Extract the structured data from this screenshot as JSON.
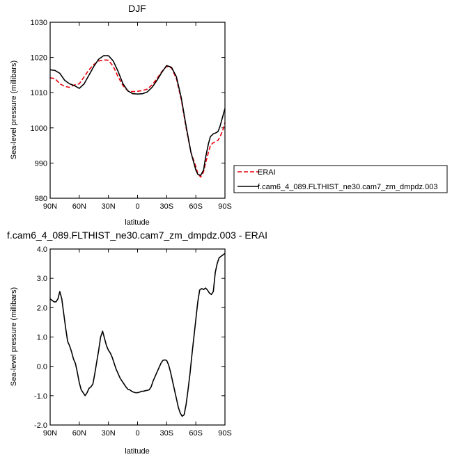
{
  "chart_data": [
    {
      "type": "line",
      "title": "DJF",
      "xlabel": "latitude",
      "ylabel": "Sea-level pressure (millibars)",
      "xlim": [
        90,
        -90
      ],
      "ylim": [
        980,
        1030
      ],
      "xticks": [
        90,
        60,
        30,
        0,
        -30,
        -60,
        -90
      ],
      "xtick_labels": [
        "90N",
        "60N",
        "30N",
        "0",
        "30S",
        "60S",
        "90S"
      ],
      "yticks": [
        980,
        990,
        1000,
        1010,
        1020,
        1030
      ],
      "ytick_labels": [
        "980",
        "990",
        "1000",
        "1010",
        "1020",
        "1030"
      ],
      "legend_position": "right",
      "grid": false,
      "series": [
        {
          "name": "ERAI",
          "color": "#e8000b",
          "style": "dashed",
          "x": [
            90,
            85,
            80,
            75,
            70,
            65,
            60,
            55,
            50,
            45,
            40,
            35,
            30,
            25,
            20,
            15,
            10,
            5,
            0,
            -5,
            -10,
            -15,
            -20,
            -25,
            -30,
            -35,
            -40,
            -45,
            -50,
            -55,
            -60,
            -62,
            -65,
            -68,
            -70,
            -73,
            -75,
            -78,
            -80,
            -83,
            -85,
            -88,
            -90
          ],
          "y": [
            1014.2,
            1014.0,
            1012.5,
            1011.8,
            1011.5,
            1012.2,
            1012.5,
            1014.5,
            1016.5,
            1018.0,
            1019.0,
            1019.3,
            1019.2,
            1017.5,
            1014.5,
            1012.0,
            1010.5,
            1010.3,
            1010.4,
            1010.6,
            1011.0,
            1012.2,
            1014.0,
            1016.0,
            1017.5,
            1017.0,
            1014.0,
            1008.0,
            1000.0,
            993.0,
            989.0,
            987.0,
            986.0,
            987.5,
            990.0,
            993.0,
            995.0,
            995.8,
            996.0,
            996.5,
            997.5,
            999.5,
            1001.5
          ]
        },
        {
          "name": "f.cam6_4_089.FLTHIST_ne30.cam7_zm_dmpdz.003",
          "color": "#000000",
          "style": "solid",
          "x": [
            90,
            85,
            80,
            75,
            70,
            65,
            60,
            55,
            50,
            45,
            40,
            35,
            30,
            25,
            20,
            15,
            10,
            5,
            0,
            -5,
            -10,
            -15,
            -20,
            -25,
            -30,
            -35,
            -40,
            -45,
            -50,
            -55,
            -60,
            -62,
            -65,
            -68,
            -70,
            -73,
            -75,
            -78,
            -80,
            -83,
            -85,
            -88,
            -90
          ],
          "y": [
            1016.5,
            1016.3,
            1015.5,
            1013.5,
            1012.5,
            1012.0,
            1011.2,
            1012.5,
            1015.0,
            1017.5,
            1019.5,
            1020.5,
            1020.5,
            1019.0,
            1016.0,
            1012.5,
            1010.5,
            1009.7,
            1009.6,
            1009.7,
            1010.2,
            1011.5,
            1013.5,
            1015.8,
            1017.7,
            1017.2,
            1014.5,
            1008.5,
            1000.5,
            993.0,
            988.0,
            986.8,
            986.5,
            988.0,
            991.5,
            995.5,
            997.5,
            998.3,
            998.5,
            999.0,
            1000.5,
            1003.5,
            1005.5
          ]
        }
      ]
    },
    {
      "type": "line",
      "title": "f.cam6_4_089.FLTHIST_ne30.cam7_zm_dmpdz.003 - ERAI",
      "xlabel": "latitude",
      "ylabel": "Sea-level pressure (millibars)",
      "xlim": [
        90,
        -90
      ],
      "ylim": [
        -2.0,
        4.0
      ],
      "xticks": [
        90,
        60,
        30,
        0,
        -30,
        -60,
        -90
      ],
      "xtick_labels": [
        "90N",
        "60N",
        "30N",
        "0",
        "30S",
        "60S",
        "90S"
      ],
      "yticks": [
        -2.0,
        -1.0,
        0.0,
        1.0,
        2.0,
        3.0,
        4.0
      ],
      "ytick_labels": [
        "-2.0",
        "-1.0",
        "0.0",
        "1.0",
        "2.0",
        "3.0",
        "4.0"
      ],
      "grid": false,
      "series": [
        {
          "color": "#000000",
          "style": "solid",
          "x": [
            90,
            88,
            86,
            84,
            82,
            80,
            78,
            76,
            74,
            72,
            70,
            68,
            66,
            64,
            62,
            60,
            58,
            56,
            54,
            52,
            50,
            48,
            46,
            44,
            42,
            40,
            38,
            36,
            34,
            32,
            30,
            28,
            26,
            24,
            22,
            20,
            18,
            16,
            14,
            12,
            10,
            8,
            6,
            4,
            2,
            0,
            -2,
            -4,
            -6,
            -8,
            -10,
            -12,
            -14,
            -16,
            -18,
            -20,
            -22,
            -24,
            -26,
            -28,
            -30,
            -32,
            -34,
            -36,
            -38,
            -40,
            -42,
            -44,
            -46,
            -48,
            -50,
            -52,
            -54,
            -56,
            -58,
            -60,
            -62,
            -64,
            -66,
            -68,
            -70,
            -72,
            -74,
            -76,
            -78,
            -80,
            -82,
            -84,
            -86,
            -88,
            -90
          ],
          "y": [
            2.3,
            2.25,
            2.2,
            2.2,
            2.3,
            2.55,
            2.3,
            1.8,
            1.3,
            0.85,
            0.7,
            0.5,
            0.25,
            0.1,
            -0.2,
            -0.55,
            -0.8,
            -0.9,
            -1.0,
            -0.9,
            -0.75,
            -0.7,
            -0.6,
            -0.25,
            0.15,
            0.55,
            1.0,
            1.2,
            0.95,
            0.7,
            0.55,
            0.45,
            0.3,
            0.1,
            -0.1,
            -0.25,
            -0.4,
            -0.5,
            -0.6,
            -0.7,
            -0.78,
            -0.8,
            -0.85,
            -0.88,
            -0.9,
            -0.9,
            -0.88,
            -0.85,
            -0.85,
            -0.83,
            -0.82,
            -0.8,
            -0.7,
            -0.5,
            -0.35,
            -0.2,
            -0.05,
            0.1,
            0.2,
            0.22,
            0.2,
            0.05,
            -0.2,
            -0.5,
            -0.8,
            -1.1,
            -1.4,
            -1.6,
            -1.7,
            -1.65,
            -1.3,
            -0.8,
            -0.25,
            0.4,
            1.0,
            1.6,
            2.2,
            2.6,
            2.65,
            2.62,
            2.67,
            2.6,
            2.5,
            2.45,
            2.55,
            3.2,
            3.5,
            3.7,
            3.75,
            3.8,
            3.85
          ]
        }
      ]
    }
  ]
}
